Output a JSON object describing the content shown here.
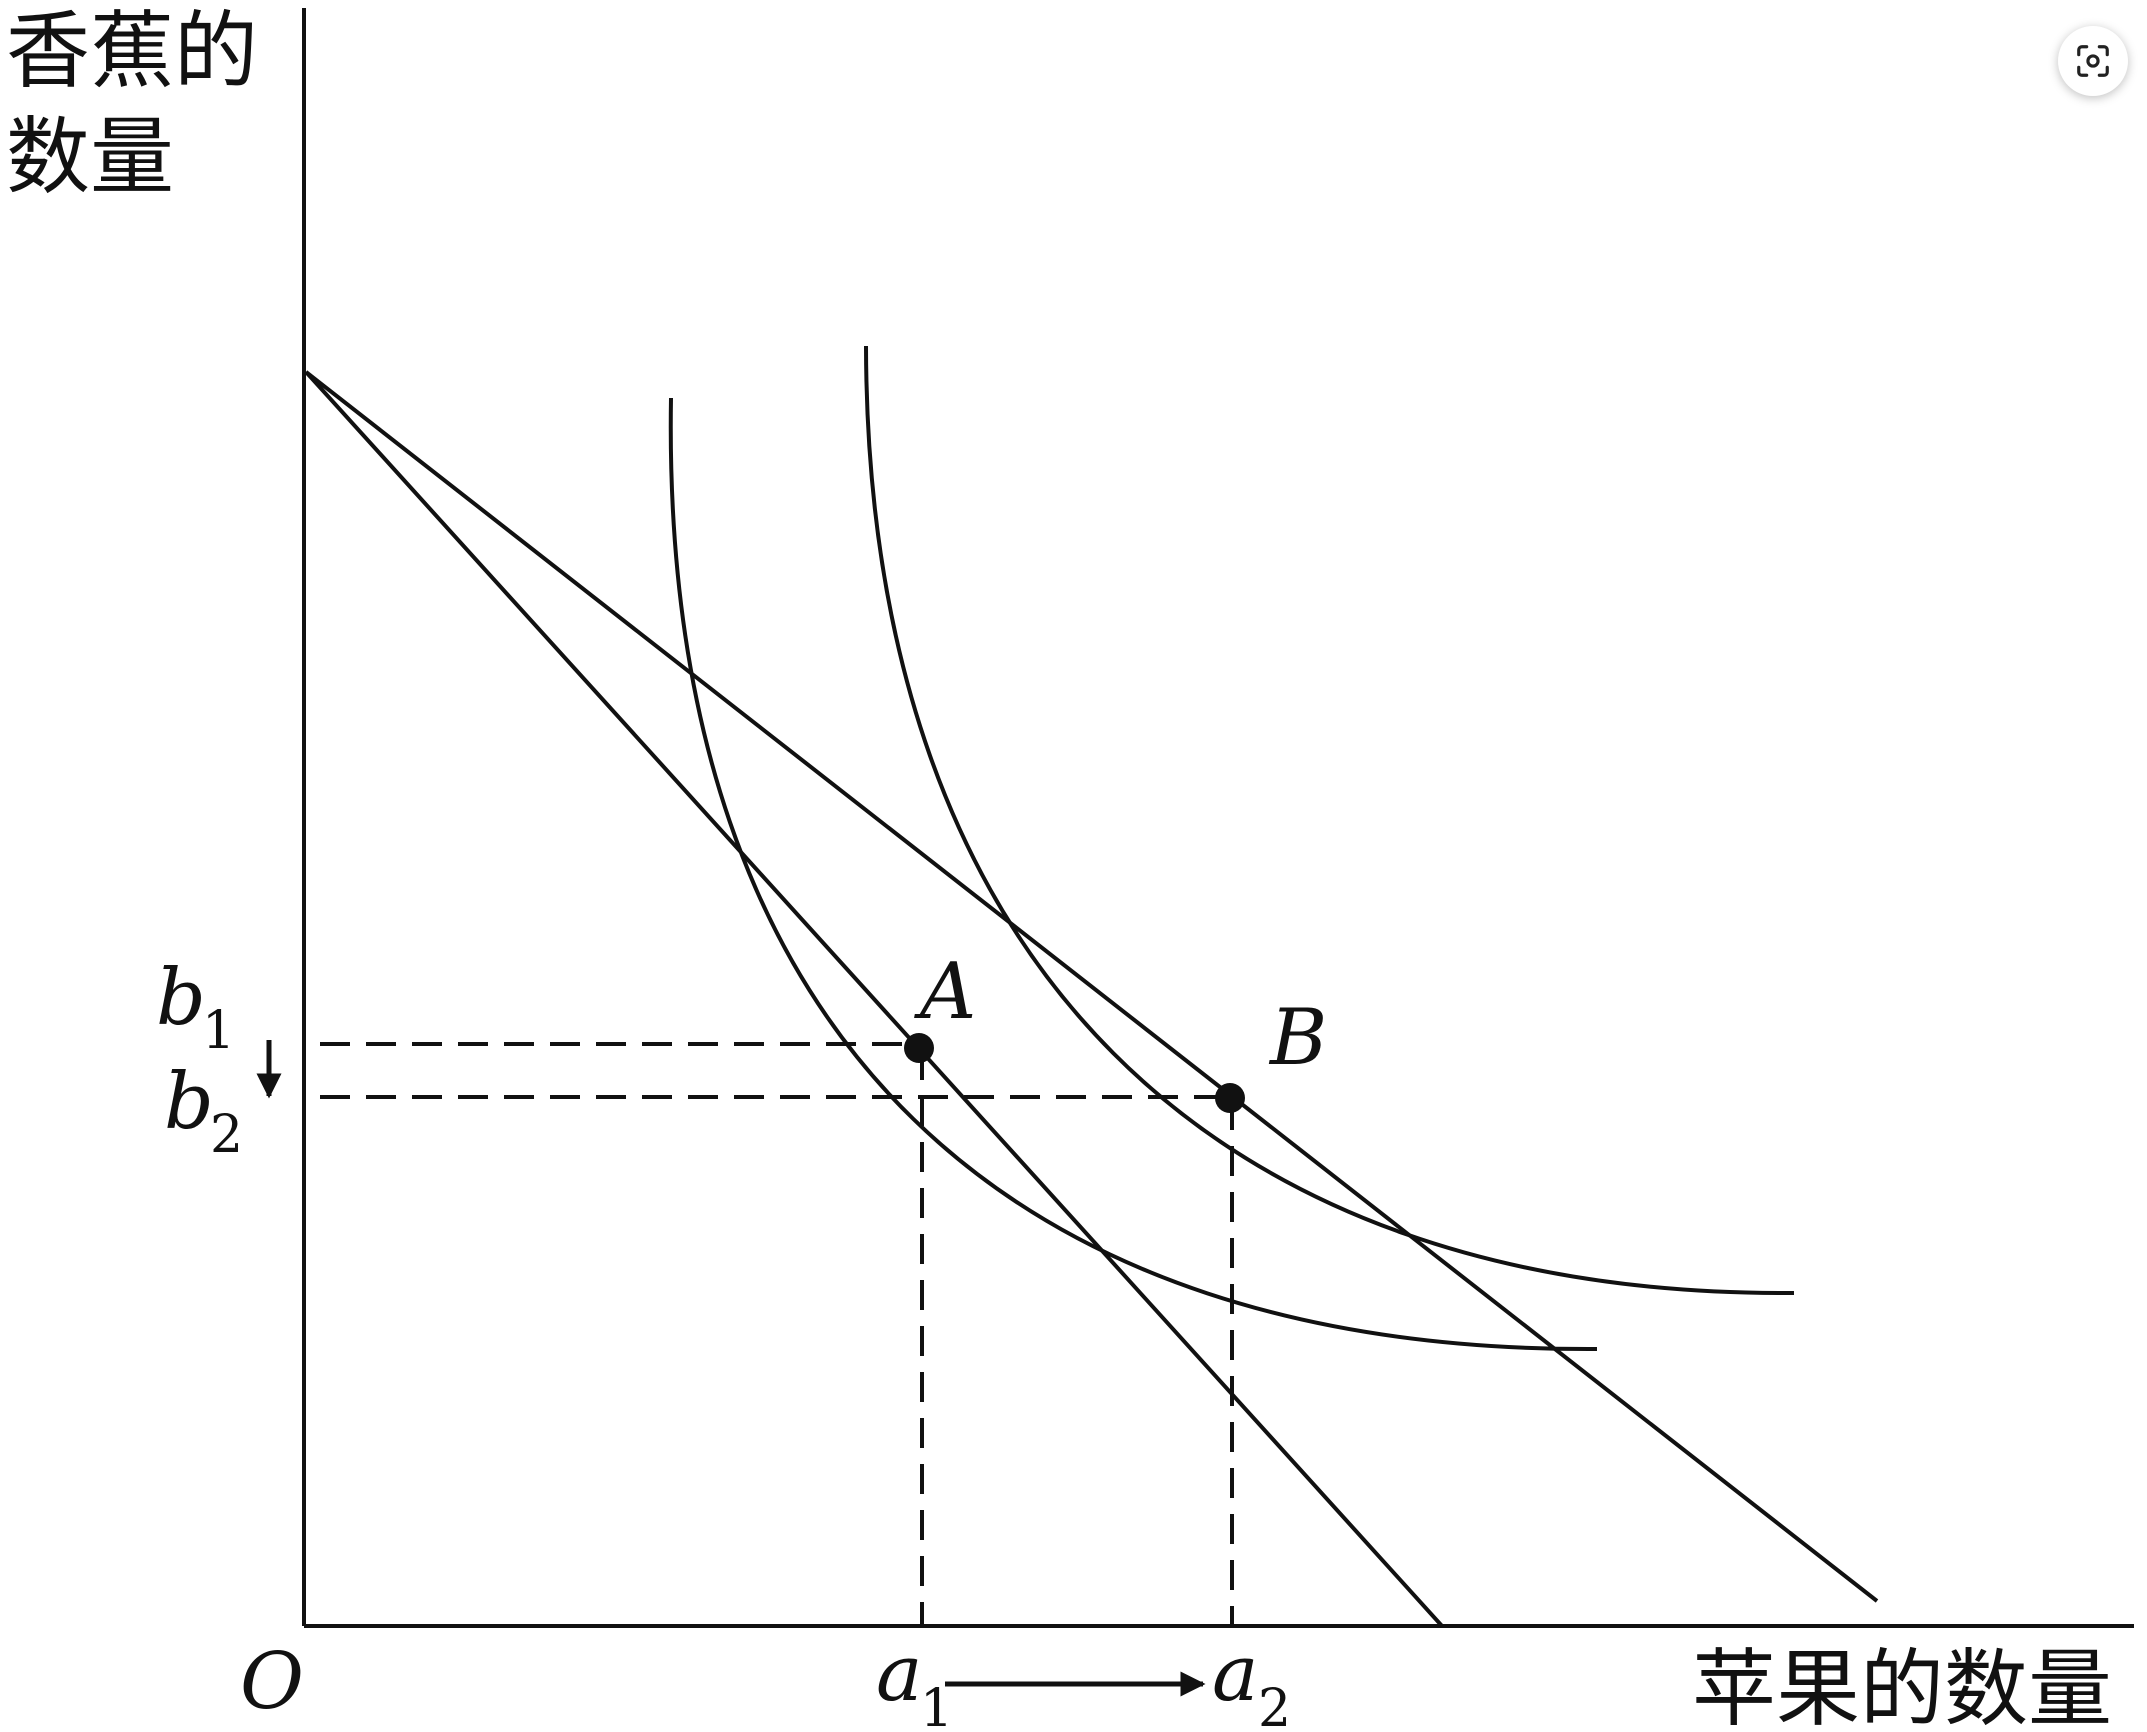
{
  "y_axis_title_line1": "香蕉的",
  "y_axis_title_line2": "数量",
  "x_axis_title": "苹果的数量",
  "origin_label": "O",
  "points": {
    "A": "A",
    "B": "B"
  },
  "y_ticks": [
    {
      "main": "b",
      "sub": "1"
    },
    {
      "main": "b",
      "sub": "2"
    }
  ],
  "x_ticks": [
    {
      "main": "a",
      "sub": "1"
    },
    {
      "main": "a",
      "sub": "2"
    }
  ],
  "icons": {
    "scan_button": "scan-icon",
    "b_shift": "arrow-down-icon",
    "a_shift": "arrow-right-icon"
  },
  "colors": {
    "ink": "#111111",
    "background": "#ffffff"
  }
}
